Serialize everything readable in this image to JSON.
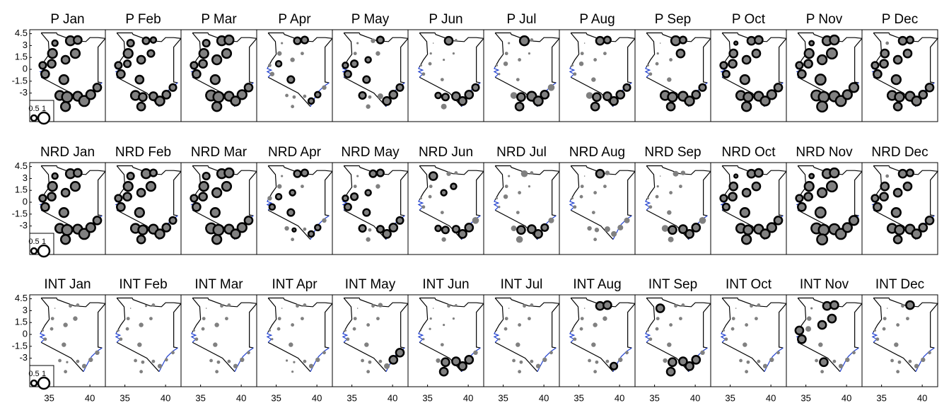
{
  "chart_data": {
    "type": "bubble-map",
    "x": [
      34.2,
      34.5,
      35.3,
      35.4,
      35.7,
      37.6,
      38.5,
      38.2,
      37.0,
      36.8,
      36.3,
      37.2,
      38.5,
      39.3,
      40.1,
      40.9,
      37.0
    ],
    "y": [
      0.5,
      -0.6,
      0.7,
      2.0,
      3.3,
      3.6,
      3.7,
      2.0,
      1.2,
      -1.3,
      -3.3,
      -3.5,
      -3.4,
      -4.0,
      -3.2,
      -2.3,
      -4.7
    ],
    "xlim": [
      32.6,
      41.9
    ],
    "ylim": [
      -6.6,
      5.0
    ],
    "xticks": [
      35,
      40
    ],
    "yticks": [
      4.5,
      3,
      1.5,
      0,
      -1.5,
      -3
    ],
    "size_legend": [
      0.5,
      1
    ],
    "fill_color": "#808080",
    "outline_color": "#000000",
    "panels": [
      {
        "title": "P  Jan",
        "sizes": [
          0.6,
          0.7,
          0.7,
          0.8,
          0.5,
          0.8,
          0.7,
          0.8,
          0.7,
          0.8,
          0.8,
          0.9,
          0.8,
          0.9,
          0.8,
          0.7,
          0.8
        ],
        "outlined": [
          0,
          1,
          2,
          3,
          4,
          5,
          6,
          7,
          8,
          9,
          10,
          11,
          12,
          13,
          14,
          15,
          16
        ]
      },
      {
        "title": "P  Feb",
        "sizes": [
          0.6,
          0.7,
          0.6,
          0.8,
          0.6,
          0.6,
          0.5,
          0.6,
          0.7,
          0.7,
          0.8,
          0.7,
          0.7,
          0.8,
          0.7,
          0.6,
          0.7
        ],
        "outlined": [
          0,
          1,
          2,
          3,
          4,
          5,
          6,
          7,
          8,
          9,
          10,
          11,
          12,
          13,
          14,
          15,
          16
        ]
      },
      {
        "title": "P  Mar",
        "sizes": [
          0.6,
          0.7,
          0.7,
          0.8,
          0.6,
          0.8,
          0.8,
          0.8,
          0.8,
          0.8,
          0.9,
          0.9,
          0.8,
          0.8,
          0.8,
          0.7,
          0.8
        ],
        "outlined": [
          0,
          1,
          2,
          3,
          4,
          5,
          6,
          7,
          8,
          9,
          10,
          11,
          12,
          13,
          14,
          15,
          16
        ]
      },
      {
        "title": "P  Apr",
        "sizes": [
          0.3,
          0.4,
          0.5,
          0.4,
          0.2,
          0.6,
          0.6,
          0.3,
          0.4,
          0.6,
          0.3,
          0.3,
          0.3,
          0.5,
          0.5,
          0.4,
          0.3
        ],
        "outlined": [
          2,
          5,
          6,
          9,
          13,
          14
        ]
      },
      {
        "title": "P  May",
        "sizes": [
          0.5,
          0.6,
          0.6,
          0.3,
          0.2,
          0.4,
          0.6,
          0.4,
          0.5,
          0.6,
          0.6,
          0.3,
          0.5,
          0.7,
          0.7,
          0.6,
          0.4
        ],
        "outlined": [
          0,
          1,
          2,
          6,
          8,
          9,
          10,
          13,
          14,
          15
        ]
      },
      {
        "title": "P  Jun",
        "sizes": [
          0.2,
          0.3,
          0.3,
          0.2,
          0.1,
          0.7,
          0.2,
          0.2,
          0.2,
          0.3,
          0.5,
          0.6,
          0.7,
          0.7,
          0.7,
          0.6,
          0.5
        ],
        "outlined": [
          5,
          10,
          11,
          12,
          13,
          14,
          15
        ]
      },
      {
        "title": "P  Jul",
        "sizes": [
          0.2,
          0.2,
          0.4,
          0.3,
          0.2,
          0.8,
          0.3,
          0.2,
          0.3,
          0.3,
          0.6,
          0.7,
          0.8,
          0.8,
          0.7,
          0.6,
          0.7
        ],
        "outlined": [
          5,
          11,
          12,
          13,
          14,
          16
        ]
      },
      {
        "title": "P  Aug",
        "sizes": [
          0.2,
          0.3,
          0.4,
          0.3,
          0.1,
          0.7,
          0.6,
          0.3,
          0.3,
          0.4,
          0.6,
          0.7,
          0.7,
          0.7,
          0.7,
          0.6,
          0.7
        ],
        "outlined": [
          5,
          6,
          11,
          12,
          13,
          14,
          15,
          16
        ]
      },
      {
        "title": "P  Sep",
        "sizes": [
          0.2,
          0.3,
          0.3,
          0.2,
          0.1,
          0.8,
          0.6,
          0.7,
          0.3,
          0.4,
          0.8,
          0.8,
          0.8,
          0.8,
          0.7,
          0.6,
          0.7
        ],
        "outlined": [
          5,
          6,
          7,
          10,
          11,
          12,
          13,
          14,
          15,
          16
        ]
      },
      {
        "title": "P  Oct",
        "sizes": [
          0.6,
          0.6,
          0.7,
          0.7,
          0.3,
          0.7,
          0.7,
          0.7,
          0.7,
          0.8,
          0.8,
          0.8,
          0.8,
          0.8,
          0.8,
          0.7,
          0.8
        ],
        "outlined": [
          0,
          1,
          2,
          3,
          4,
          5,
          6,
          7,
          8,
          9,
          10,
          11,
          12,
          13,
          14,
          15,
          16
        ]
      },
      {
        "title": "P  Nov",
        "sizes": [
          0.6,
          0.7,
          0.7,
          0.8,
          0.4,
          0.8,
          0.8,
          0.9,
          0.8,
          0.9,
          0.9,
          0.9,
          0.9,
          0.9,
          0.8,
          0.8,
          0.9
        ],
        "outlined": [
          0,
          1,
          2,
          3,
          4,
          5,
          6,
          7,
          8,
          9,
          10,
          11,
          12,
          13,
          14,
          15,
          16
        ]
      },
      {
        "title": "P  Dec",
        "sizes": [
          0.6,
          0.7,
          0.7,
          0.7,
          0.3,
          0.7,
          0.6,
          0.7,
          0.7,
          0.8,
          0.8,
          0.8,
          0.8,
          0.8,
          0.7,
          0.7,
          0.7
        ],
        "outlined": [
          0,
          1,
          2,
          3,
          5,
          6,
          7,
          8,
          9,
          10,
          11,
          12,
          13,
          14,
          15,
          16
        ]
      },
      {
        "title": "NRD Jan",
        "sizes": [
          0.6,
          0.7,
          0.7,
          0.8,
          0.5,
          0.8,
          0.7,
          0.8,
          0.7,
          0.8,
          0.8,
          0.9,
          0.8,
          0.9,
          0.8,
          0.7,
          0.8
        ],
        "outlined": [
          0,
          1,
          2,
          3,
          4,
          5,
          6,
          7,
          8,
          9,
          10,
          11,
          12,
          13,
          14,
          15,
          16
        ]
      },
      {
        "title": "NRD Feb",
        "sizes": [
          0.6,
          0.7,
          0.7,
          0.8,
          0.6,
          0.8,
          0.6,
          0.8,
          0.7,
          0.8,
          0.8,
          0.8,
          0.8,
          0.8,
          0.7,
          0.6,
          0.7
        ],
        "outlined": [
          0,
          1,
          2,
          3,
          4,
          5,
          6,
          7,
          8,
          9,
          10,
          11,
          12,
          13,
          14,
          15,
          16
        ]
      },
      {
        "title": "NRD Mar",
        "sizes": [
          0.6,
          0.7,
          0.7,
          0.8,
          0.6,
          0.8,
          0.8,
          0.8,
          0.8,
          0.8,
          0.9,
          0.9,
          0.8,
          0.8,
          0.8,
          0.7,
          0.8
        ],
        "outlined": [
          0,
          1,
          2,
          3,
          4,
          5,
          6,
          7,
          8,
          9,
          10,
          11,
          12,
          13,
          14,
          15,
          16
        ]
      },
      {
        "title": "NRD Apr",
        "sizes": [
          0.4,
          0.5,
          0.5,
          0.4,
          0.2,
          0.6,
          0.6,
          0.3,
          0.5,
          0.6,
          0.4,
          0.3,
          0.3,
          0.5,
          0.5,
          0.4,
          0.3
        ],
        "outlined": [
          1,
          2,
          5,
          6,
          8,
          9,
          11,
          13,
          14
        ]
      },
      {
        "title": "NRD May",
        "sizes": [
          0.5,
          0.6,
          0.6,
          0.3,
          0.2,
          0.6,
          0.6,
          0.4,
          0.5,
          0.6,
          0.6,
          0.3,
          0.6,
          0.7,
          0.7,
          0.6,
          0.4
        ],
        "outlined": [
          0,
          1,
          2,
          5,
          6,
          8,
          9,
          10,
          12,
          13,
          14,
          15
        ]
      },
      {
        "title": "NRD Jun",
        "sizes": [
          0.2,
          0.3,
          0.3,
          0.3,
          0.7,
          0.4,
          0.3,
          0.5,
          0.5,
          0.3,
          0.5,
          0.6,
          0.6,
          0.7,
          0.7,
          0.6,
          0.4
        ],
        "outlined": [
          4,
          7,
          8,
          10,
          11,
          12,
          13,
          14
        ]
      },
      {
        "title": "NRD Jul",
        "sizes": [
          0.2,
          0.2,
          0.4,
          0.3,
          0.2,
          0.6,
          0.3,
          0.2,
          0.3,
          0.3,
          0.5,
          0.7,
          0.7,
          0.7,
          0.6,
          0.5,
          0.6
        ],
        "outlined": [
          11,
          12,
          13,
          14
        ]
      },
      {
        "title": "NRD Aug",
        "sizes": [
          0.2,
          0.3,
          0.3,
          0.3,
          0.1,
          0.7,
          0.4,
          0.3,
          0.3,
          0.3,
          0.4,
          0.4,
          0.5,
          0.5,
          0.5,
          0.5,
          0.3
        ],
        "outlined": [
          5
        ]
      },
      {
        "title": "NRD Sep",
        "sizes": [
          0.2,
          0.3,
          0.3,
          0.2,
          0.1,
          0.5,
          0.4,
          0.3,
          0.3,
          0.4,
          0.6,
          0.7,
          0.7,
          0.7,
          0.7,
          0.6,
          0.5
        ],
        "outlined": [
          11,
          12,
          13,
          14
        ]
      },
      {
        "title": "NRD Oct",
        "sizes": [
          0.6,
          0.6,
          0.7,
          0.7,
          0.3,
          0.7,
          0.7,
          0.7,
          0.7,
          0.8,
          0.8,
          0.8,
          0.8,
          0.8,
          0.8,
          0.7,
          0.8
        ],
        "outlined": [
          0,
          1,
          2,
          3,
          4,
          5,
          6,
          7,
          8,
          9,
          10,
          11,
          12,
          13,
          14,
          15,
          16
        ]
      },
      {
        "title": "NRD Nov",
        "sizes": [
          0.6,
          0.7,
          0.7,
          0.8,
          0.4,
          0.8,
          0.8,
          0.9,
          0.8,
          0.9,
          0.9,
          0.9,
          0.9,
          0.9,
          0.8,
          0.8,
          0.9
        ],
        "outlined": [
          0,
          1,
          2,
          3,
          4,
          5,
          6,
          7,
          8,
          9,
          10,
          11,
          12,
          13,
          14,
          15,
          16
        ]
      },
      {
        "title": "NRD Dec",
        "sizes": [
          0.6,
          0.7,
          0.7,
          0.7,
          0.3,
          0.7,
          0.6,
          0.7,
          0.7,
          0.8,
          0.8,
          0.8,
          0.8,
          0.8,
          0.7,
          0.7,
          0.7
        ],
        "outlined": [
          0,
          1,
          2,
          3,
          5,
          6,
          7,
          8,
          9,
          10,
          11,
          12,
          13,
          14,
          15,
          16
        ]
      },
      {
        "title": "INT Jan",
        "sizes": [
          0.2,
          0.3,
          0.3,
          0.3,
          0.1,
          0.3,
          0.3,
          0.4,
          0.4,
          0.4,
          0.3,
          0.2,
          0.3,
          0.4,
          0.4,
          0.4,
          0.3
        ],
        "outlined": []
      },
      {
        "title": "INT Feb",
        "sizes": [
          0.2,
          0.3,
          0.3,
          0.3,
          0.1,
          0.2,
          0.3,
          0.3,
          0.4,
          0.4,
          0.3,
          0.3,
          0.3,
          0.4,
          0.3,
          0.3,
          0.3
        ],
        "outlined": []
      },
      {
        "title": "INT Mar",
        "sizes": [
          0.2,
          0.3,
          0.3,
          0.3,
          0.1,
          0.3,
          0.3,
          0.3,
          0.4,
          0.4,
          0.3,
          0.3,
          0.3,
          0.4,
          0.4,
          0.3,
          0.3
        ],
        "outlined": []
      },
      {
        "title": "INT Apr",
        "sizes": [
          0.2,
          0.2,
          0.3,
          0.3,
          0.1,
          0.3,
          0.3,
          0.3,
          0.3,
          0.4,
          0.2,
          0.2,
          0.3,
          0.4,
          0.4,
          0.3,
          0.2
        ],
        "outlined": []
      },
      {
        "title": "INT May",
        "sizes": [
          0.2,
          0.3,
          0.3,
          0.3,
          0.1,
          0.3,
          0.4,
          0.3,
          0.3,
          0.4,
          0.3,
          0.3,
          0.3,
          0.5,
          0.7,
          0.7,
          0.3
        ],
        "outlined": [
          14,
          15
        ]
      },
      {
        "title": "INT Jun",
        "sizes": [
          0.1,
          0.2,
          0.2,
          0.2,
          0.1,
          0.3,
          0.2,
          0.2,
          0.2,
          0.3,
          0.4,
          0.7,
          0.7,
          0.7,
          0.7,
          0.4,
          0.7
        ],
        "outlined": [
          11,
          12,
          13,
          14,
          16
        ]
      },
      {
        "title": "INT Jul",
        "sizes": [
          0.1,
          0.2,
          0.3,
          0.3,
          0.1,
          0.3,
          0.3,
          0.3,
          0.3,
          0.4,
          0.3,
          0.3,
          0.3,
          0.4,
          0.4,
          0.3,
          0.3
        ],
        "outlined": []
      },
      {
        "title": "INT Aug",
        "sizes": [
          0.2,
          0.3,
          0.3,
          0.3,
          0.1,
          0.7,
          0.7,
          0.4,
          0.4,
          0.4,
          0.3,
          0.3,
          0.3,
          0.6,
          0.4,
          0.3,
          0.3
        ],
        "outlined": [
          5,
          6,
          13
        ]
      },
      {
        "title": "INT Sep",
        "sizes": [
          0.2,
          0.3,
          0.3,
          0.3,
          0.7,
          0.3,
          0.3,
          0.3,
          0.3,
          0.4,
          0.4,
          0.7,
          0.7,
          0.7,
          0.7,
          0.4,
          0.7
        ],
        "outlined": [
          4,
          11,
          12,
          13,
          14,
          16
        ]
      },
      {
        "title": "INT Oct",
        "sizes": [
          0.2,
          0.3,
          0.3,
          0.3,
          0.1,
          0.3,
          0.3,
          0.3,
          0.3,
          0.4,
          0.3,
          0.3,
          0.3,
          0.4,
          0.4,
          0.3,
          0.3
        ],
        "outlined": []
      },
      {
        "title": "INT Nov",
        "sizes": [
          0.7,
          0.7,
          0.5,
          0.4,
          0.2,
          0.7,
          0.7,
          0.7,
          0.7,
          0.4,
          0.3,
          0.7,
          0.3,
          0.4,
          0.4,
          0.3,
          0.3
        ],
        "outlined": [
          0,
          1,
          5,
          6,
          7,
          8,
          11
        ]
      },
      {
        "title": "INT Dec",
        "sizes": [
          0.2,
          0.3,
          0.3,
          0.3,
          0.1,
          0.3,
          0.7,
          0.3,
          0.3,
          0.4,
          0.3,
          0.3,
          0.3,
          0.4,
          0.4,
          0.3,
          0.3
        ],
        "outlined": [
          6
        ]
      }
    ]
  }
}
